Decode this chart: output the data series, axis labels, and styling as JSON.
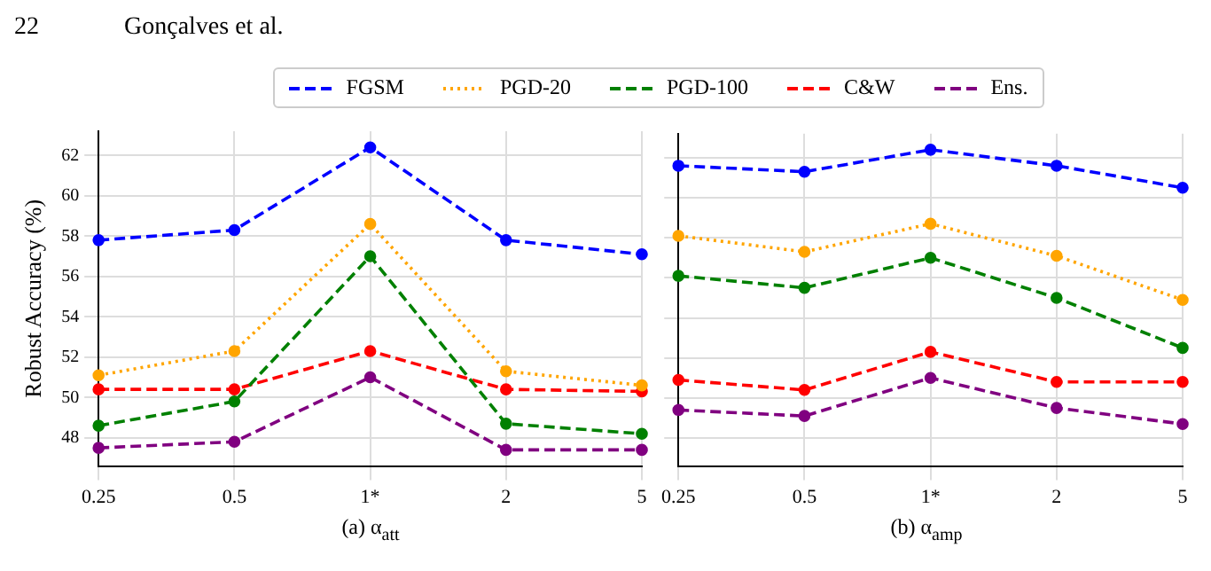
{
  "chart_data": [
    {
      "type": "line",
      "annotations": [
        "22",
        "Gonçalves et al."
      ],
      "xlabel": "(a) α$_{att}$",
      "ylabel": "Robust Accuracy (%)",
      "categories": [
        "0.25",
        "0.5",
        "1*",
        "2",
        "5"
      ],
      "ylim": [
        46.6,
        63.2
      ],
      "yticks": [
        48,
        50,
        52,
        54,
        56,
        58,
        60,
        62
      ],
      "grid": true,
      "legend": "top",
      "marker": "circle",
      "series": [
        {
          "name": "FGSM",
          "color": "#0000ff",
          "line_style": "dashed",
          "values": [
            57.8,
            58.3,
            62.4,
            57.8,
            57.1
          ]
        },
        {
          "name": "PGD-20",
          "color": "#ffa500",
          "line_style": "dotted",
          "values": [
            51.1,
            52.3,
            58.6,
            51.3,
            50.6
          ]
        },
        {
          "name": "PGD-100",
          "color": "#008000",
          "line_style": "dashed",
          "values": [
            48.6,
            49.8,
            57.0,
            48.7,
            48.2
          ]
        },
        {
          "name": "C&W",
          "color": "#ff0000",
          "line_style": "dashed",
          "values": [
            50.4,
            50.4,
            52.3,
            50.4,
            50.3
          ]
        },
        {
          "name": "Ens.",
          "color": "#800080",
          "line_style": "dashed",
          "values": [
            47.5,
            47.8,
            51.0,
            47.4,
            47.4
          ]
        }
      ]
    },
    {
      "type": "line",
      "xlabel": "(b) α$_{amp}$",
      "categories": [
        "0.25",
        "0.5",
        "1*",
        "2",
        "5"
      ],
      "ylim": [
        46.6,
        63.2
      ],
      "yticks": [
        48,
        50,
        52,
        54,
        56,
        58,
        60,
        62
      ],
      "tick_labels": "x",
      "grid": true,
      "marker": "circle",
      "series": [
        {
          "color": "#0000ff",
          "line_style": "dashed",
          "values": [
            61.6,
            61.3,
            62.4,
            61.6,
            60.5
          ]
        },
        {
          "color": "#ffa500",
          "line_style": "dotted",
          "values": [
            58.1,
            57.3,
            58.7,
            57.1,
            54.9
          ]
        },
        {
          "color": "#008000",
          "line_style": "dashed",
          "values": [
            56.1,
            55.5,
            57.0,
            55.0,
            52.5
          ]
        },
        {
          "color": "#ff0000",
          "line_style": "dashed",
          "values": [
            50.9,
            50.4,
            52.3,
            50.8,
            50.8
          ]
        },
        {
          "color": "#800080",
          "line_style": "dashed",
          "values": [
            49.4,
            49.1,
            51.0,
            49.5,
            48.7
          ]
        }
      ]
    }
  ]
}
